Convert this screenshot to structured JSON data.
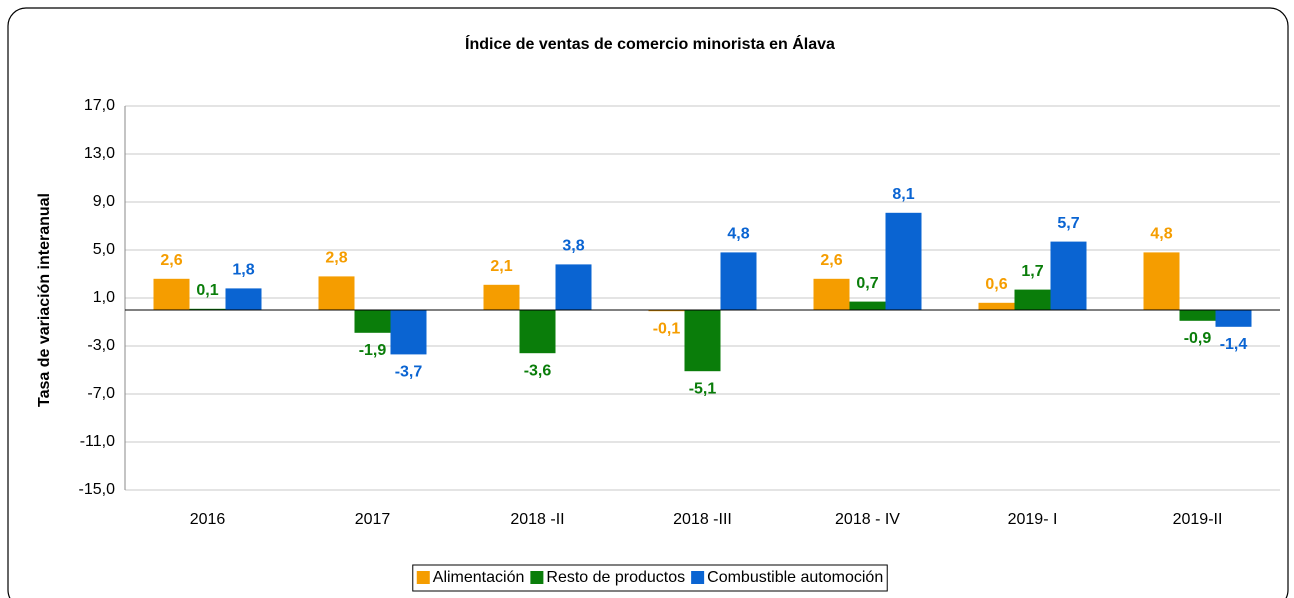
{
  "chart_data": {
    "type": "bar",
    "title": "Índice de ventas de comercio minorista en Álava",
    "y_label": "Tasa de variación interanual",
    "categories": [
      "2016",
      "2017",
      "2018 -II",
      "2018 -III",
      "2018 - IV",
      "2019- I",
      "2019-II"
    ],
    "series": [
      {
        "name": "Alimentación",
        "color": "#f59d00",
        "values": [
          2.6,
          2.8,
          2.1,
          -0.1,
          2.6,
          0.6,
          4.8
        ],
        "value_labels": [
          "2,6",
          "2,8",
          "2,1",
          "-0,1",
          "2,6",
          "0,6",
          "4,8"
        ]
      },
      {
        "name": "Resto de productos",
        "color": "#0a7d0a",
        "values": [
          0.1,
          -1.9,
          -3.6,
          -5.1,
          0.7,
          1.7,
          -0.9
        ],
        "value_labels": [
          "0,1",
          "-1,9",
          "-3,6",
          "-5,1",
          "0,7",
          "1,7",
          "-0,9"
        ]
      },
      {
        "name": "Combustible automoción",
        "color": "#0a64d2",
        "values": [
          1.8,
          -3.7,
          3.8,
          4.8,
          8.1,
          5.7,
          -1.4
        ],
        "value_labels": [
          "1,8",
          "-3,7",
          "3,8",
          "4,8",
          "8,1",
          "5,7",
          "-1,4"
        ]
      }
    ],
    "ylim": [
      -15,
      17
    ],
    "yticks": [
      {
        "value": -15,
        "label": "-15,0"
      },
      {
        "value": -11,
        "label": "-11,0"
      },
      {
        "value": -7,
        "label": "-7,0"
      },
      {
        "value": -3,
        "label": "-3,0"
      },
      {
        "value": 1,
        "label": "1,0"
      },
      {
        "value": 5,
        "label": "5,0"
      },
      {
        "value": 9,
        "label": "9,0"
      },
      {
        "value": 13,
        "label": "13,0"
      },
      {
        "value": 17,
        "label": "17,0"
      }
    ],
    "grid": true,
    "legend": "bottom"
  }
}
